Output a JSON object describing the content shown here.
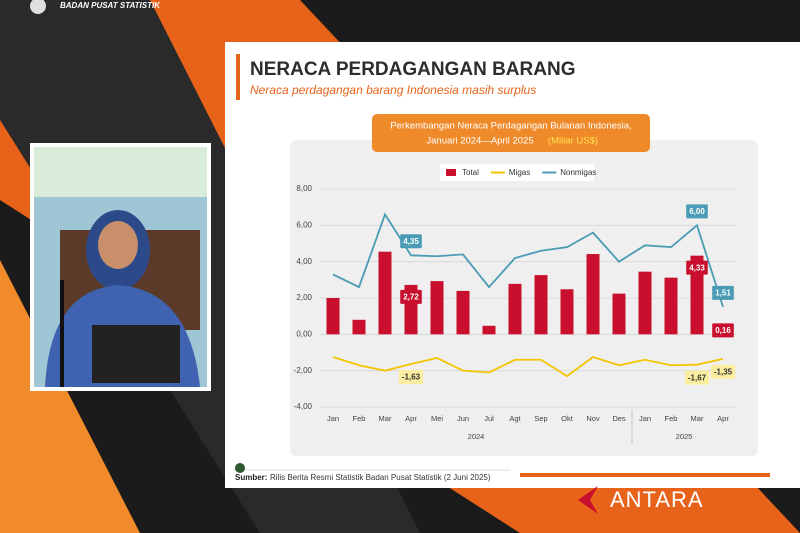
{
  "broadcast": {
    "agency": "BADAN PUSAT STATISTIK",
    "watermark": "ANTARA"
  },
  "header": {
    "title": "NERACA PERDAGANGAN BARANG",
    "subtitle": "Neraca perdagangan barang Indonesia masih surplus"
  },
  "source": {
    "label": "Sumber:",
    "text": "Rilis Berita Resmi Statistik Badan Pusat Statistik (2 Juni 2025)"
  },
  "chart_data": {
    "type": "bar",
    "title": "Perkembangan Neraca Perdagangan Bulanan Indonesia,",
    "subtitle": "Januari 2024—April 2025",
    "unit": "(Miliar US$)",
    "categories": [
      "Jan",
      "Feb",
      "Mar",
      "Apr",
      "Mei",
      "Jun",
      "Jul",
      "Agt",
      "Sep",
      "Okt",
      "Nov",
      "Des",
      "Jan",
      "Feb",
      "Mar",
      "Apr"
    ],
    "year_labels": [
      "2024",
      "2025"
    ],
    "series": [
      {
        "name": "Total",
        "type": "bar",
        "color": "#c8102e",
        "values": [
          2.0,
          0.8,
          4.55,
          2.72,
          2.93,
          2.39,
          0.47,
          2.78,
          3.26,
          2.48,
          4.42,
          2.24,
          3.45,
          3.12,
          4.33,
          0.16
        ],
        "value_labels": [
          null,
          null,
          null,
          "2,72",
          null,
          null,
          null,
          null,
          null,
          null,
          null,
          null,
          null,
          null,
          "4,33",
          "0,16"
        ]
      },
      {
        "name": "Migas",
        "type": "line",
        "color": "#f2c500",
        "values": [
          -1.25,
          -1.7,
          -2.0,
          -1.63,
          -1.3,
          -2.0,
          -2.1,
          -1.4,
          -1.4,
          -2.3,
          -1.25,
          -1.7,
          -1.4,
          -1.7,
          -1.67,
          -1.35
        ],
        "value_labels": [
          null,
          null,
          null,
          "-1,63",
          null,
          null,
          null,
          null,
          null,
          null,
          null,
          null,
          null,
          null,
          "-1,67",
          "-1,35"
        ]
      },
      {
        "name": "Nonmigas",
        "type": "line",
        "color": "#4a9bb5",
        "values": [
          3.3,
          2.6,
          6.6,
          4.35,
          4.3,
          4.4,
          2.6,
          4.2,
          4.6,
          4.8,
          5.6,
          4.0,
          4.9,
          4.8,
          6.0,
          1.51
        ],
        "value_labels": [
          null,
          null,
          null,
          "4,35",
          null,
          null,
          null,
          null,
          null,
          null,
          null,
          null,
          null,
          null,
          "6,00",
          "1,51"
        ]
      }
    ],
    "ylim": [
      -4,
      8
    ],
    "yticks": [
      {
        "value": -4,
        "label": "-4,00"
      },
      {
        "value": -2,
        "label": "-2,00"
      },
      {
        "value": 0,
        "label": "0,00"
      },
      {
        "value": 2,
        "label": "2,00"
      },
      {
        "value": 4,
        "label": "4,00"
      },
      {
        "value": 6,
        "label": "6,00"
      },
      {
        "value": 8,
        "label": "8,00"
      }
    ],
    "grid": true,
    "legend": "top"
  }
}
